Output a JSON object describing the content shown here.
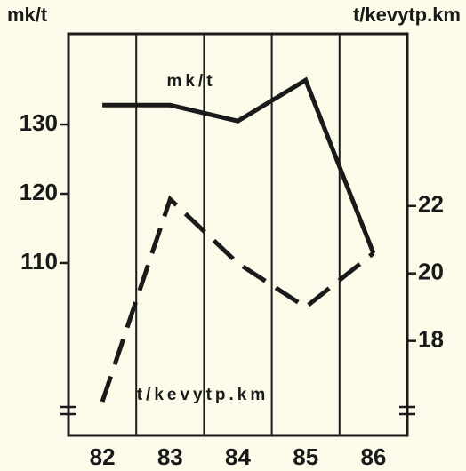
{
  "chart_data": {
    "type": "line",
    "y_label": "mk/t",
    "y2_label": "t/kevytp.km",
    "categories": [
      "82",
      "83",
      "84",
      "85",
      "86"
    ],
    "series": [
      {
        "name": "mk/t",
        "color": "#1a1a1a",
        "values": [
          132.8,
          132.8,
          130.5,
          136.4,
          111.4
        ]
      },
      {
        "name": "t/kevytp.km",
        "color": "#1a1a1a",
        "axis": "y2",
        "dashed": true,
        "values": [
          16.2,
          22.2,
          20.3,
          19.0,
          20.6
        ]
      }
    ],
    "ylim": [
      85.1,
      143.1
    ],
    "yticks": [
      110,
      120,
      130
    ],
    "y2lim": [
      15.2,
      27.1
    ],
    "y2ticks": [
      18,
      20,
      22
    ],
    "grid": true
  }
}
